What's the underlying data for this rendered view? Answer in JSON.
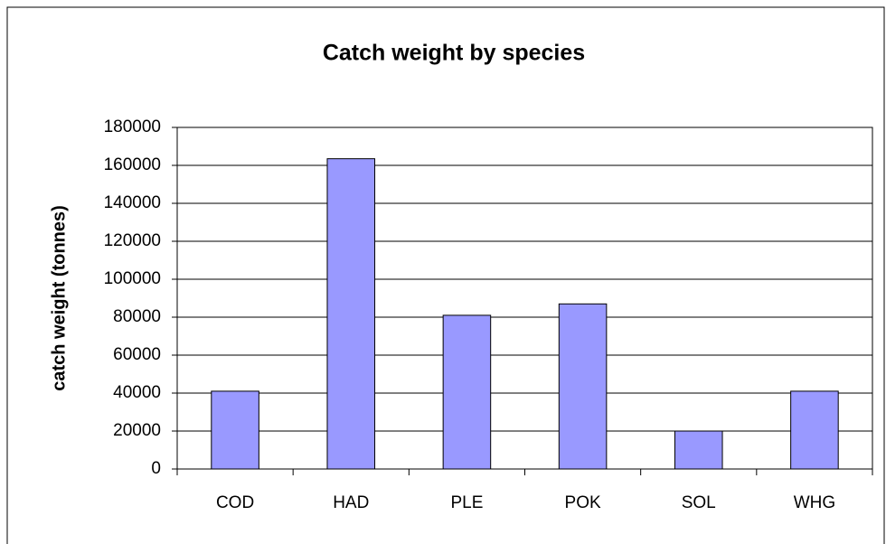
{
  "chart_data": {
    "type": "bar",
    "title": "Catch weight by species",
    "y_label": "catch weight (tonnes)",
    "categories": [
      "COD",
      "HAD",
      "PLE",
      "POK",
      "SOL",
      "WHG"
    ],
    "values": [
      41000,
      163500,
      81000,
      87000,
      20000,
      41000
    ],
    "color": "#9999ff",
    "ylim": [
      0,
      180000
    ],
    "yticks": [
      0,
      20000,
      40000,
      60000,
      80000,
      100000,
      120000,
      140000,
      160000,
      180000
    ],
    "grid": true
  }
}
